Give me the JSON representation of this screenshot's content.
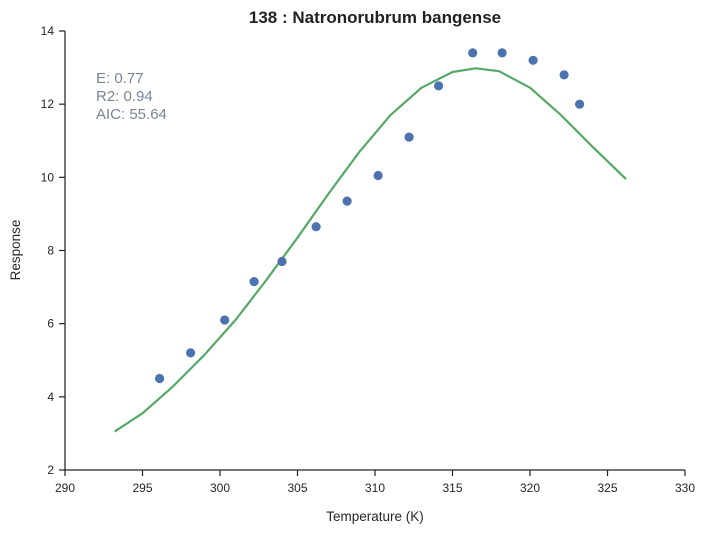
{
  "chart_data": {
    "type": "scatter",
    "title": "138 : Natronorubrum bangense",
    "xlabel": "Temperature (K)",
    "ylabel": "Response",
    "xlim": [
      290,
      330
    ],
    "ylim": [
      2,
      14
    ],
    "xticks": [
      290,
      295,
      300,
      305,
      310,
      315,
      320,
      325,
      330
    ],
    "yticks": [
      2,
      4,
      6,
      8,
      10,
      12,
      14
    ],
    "grid": false,
    "annotations": [
      "E:  0.77",
      "R2:  0.94",
      "AIC: 55.64"
    ],
    "series": [
      {
        "kind": "scatter",
        "color": "#4c72b0",
        "points": [
          [
            296.1,
            4.5
          ],
          [
            298.1,
            5.2
          ],
          [
            300.3,
            6.1
          ],
          [
            302.2,
            7.15
          ],
          [
            304.0,
            7.7
          ],
          [
            306.2,
            8.65
          ],
          [
            308.2,
            9.35
          ],
          [
            310.2,
            10.05
          ],
          [
            312.2,
            11.1
          ],
          [
            314.1,
            12.5
          ],
          [
            316.3,
            13.4
          ],
          [
            318.2,
            13.4
          ],
          [
            320.2,
            13.2
          ],
          [
            322.2,
            12.8
          ],
          [
            323.2,
            12.0
          ]
        ]
      },
      {
        "kind": "line",
        "color": "#55a868",
        "points": [
          [
            293.2,
            3.05
          ],
          [
            295,
            3.55
          ],
          [
            297,
            4.3
          ],
          [
            299,
            5.15
          ],
          [
            301,
            6.1
          ],
          [
            303,
            7.2
          ],
          [
            305,
            8.35
          ],
          [
            307,
            9.55
          ],
          [
            309,
            10.7
          ],
          [
            311,
            11.7
          ],
          [
            313,
            12.45
          ],
          [
            315,
            12.88
          ],
          [
            316.5,
            12.98
          ],
          [
            318,
            12.9
          ],
          [
            320,
            12.45
          ],
          [
            322,
            11.7
          ],
          [
            324,
            10.85
          ],
          [
            326.2,
            9.95
          ]
        ]
      }
    ]
  }
}
